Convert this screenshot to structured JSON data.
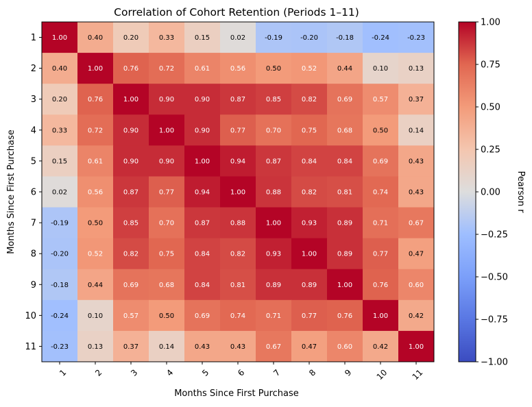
{
  "chart_data": {
    "type": "heatmap",
    "title": "Correlation of Cohort Retention (Periods 1–11)",
    "xlabel": "Months Since First Purchase",
    "ylabel": "Months Since First Purchase",
    "x_categories": [
      "1",
      "2",
      "3",
      "4",
      "5",
      "6",
      "7",
      "8",
      "9",
      "10",
      "11"
    ],
    "y_categories": [
      "1",
      "2",
      "3",
      "4",
      "5",
      "6",
      "7",
      "8",
      "9",
      "10",
      "11"
    ],
    "values": [
      [
        1.0,
        0.4,
        0.2,
        0.33,
        0.15,
        0.02,
        -0.19,
        -0.2,
        -0.18,
        -0.24,
        -0.23
      ],
      [
        0.4,
        1.0,
        0.76,
        0.72,
        0.61,
        0.56,
        0.5,
        0.52,
        0.44,
        0.1,
        0.13
      ],
      [
        0.2,
        0.76,
        1.0,
        0.9,
        0.9,
        0.87,
        0.85,
        0.82,
        0.69,
        0.57,
        0.37
      ],
      [
        0.33,
        0.72,
        0.9,
        1.0,
        0.9,
        0.77,
        0.7,
        0.75,
        0.68,
        0.5,
        0.14
      ],
      [
        0.15,
        0.61,
        0.9,
        0.9,
        1.0,
        0.94,
        0.87,
        0.84,
        0.84,
        0.69,
        0.43
      ],
      [
        0.02,
        0.56,
        0.87,
        0.77,
        0.94,
        1.0,
        0.88,
        0.82,
        0.81,
        0.74,
        0.43
      ],
      [
        -0.19,
        0.5,
        0.85,
        0.7,
        0.87,
        0.88,
        1.0,
        0.93,
        0.89,
        0.71,
        0.67
      ],
      [
        -0.2,
        0.52,
        0.82,
        0.75,
        0.84,
        0.82,
        0.93,
        1.0,
        0.89,
        0.77,
        0.47
      ],
      [
        -0.18,
        0.44,
        0.69,
        0.68,
        0.84,
        0.81,
        0.89,
        0.89,
        1.0,
        0.76,
        0.6
      ],
      [
        -0.24,
        0.1,
        0.57,
        0.5,
        0.69,
        0.74,
        0.71,
        0.77,
        0.76,
        1.0,
        0.42
      ],
      [
        -0.23,
        0.13,
        0.37,
        0.14,
        0.43,
        0.43,
        0.67,
        0.47,
        0.6,
        0.42,
        1.0
      ]
    ],
    "value_range": [
      -1.0,
      1.0
    ],
    "colormap": "coolwarm",
    "colorbar_label": "Pearson r",
    "colorbar_ticks": [
      "1.00",
      "0.75",
      "0.50",
      "0.25",
      "0.00",
      "−0.25",
      "−0.50",
      "−0.75",
      "−1.00"
    ],
    "colors": {
      "low": "#3b4cc0",
      "mid": "#dddddd",
      "high": "#b40426"
    },
    "grid": false,
    "annotations": "cell values shown with two decimals"
  }
}
